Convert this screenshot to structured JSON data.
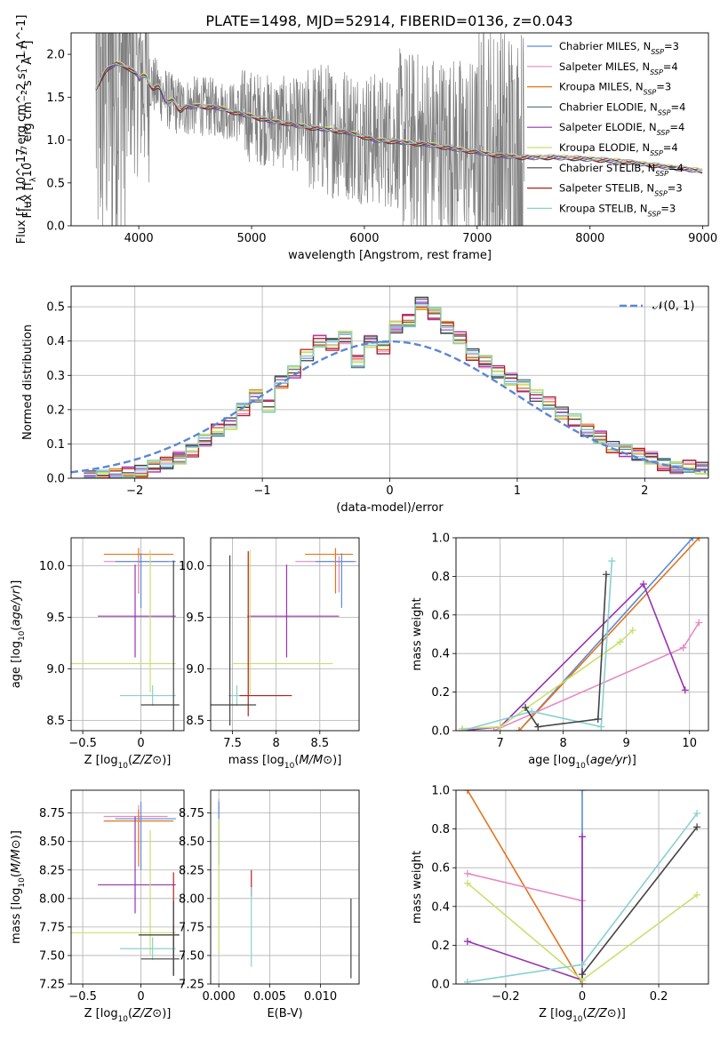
{
  "figure_title": "PLATE=1498, MJD=52914, FIBERID=0136, z=0.043",
  "colors": {
    "Chabrier MILES": "#5a8cd6",
    "Salpeter MILES": "#e78ac3",
    "Kroupa MILES": "#e6731c",
    "Chabrier ELODIE": "#5c7f7a",
    "Salpeter ELODIE": "#9932b2",
    "Kroupa ELODIE": "#c8e070",
    "Chabrier STELIB": "#444444",
    "Salpeter STELIB": "#b22020",
    "Kroupa STELIB": "#88d0d0",
    "data": "#808080",
    "normal": "#5b86d6"
  },
  "chart_data": [
    {
      "id": "spectrum",
      "type": "line",
      "title": "PLATE=1498, MJD=52914, FIBERID=0136, z=0.043",
      "xlabel": "wavelength [Angstrom, rest frame]",
      "ylabel": "Flux [f_λ 10^-17 erg cm^-2 s^-1 A^-1]",
      "xlim": [
        3400,
        9050
      ],
      "ylim": [
        0,
        2.25
      ],
      "xticks": [
        4000,
        5000,
        6000,
        7000,
        8000,
        9000
      ],
      "yticks": [
        0.0,
        0.5,
        1.0,
        1.5,
        2.0
      ],
      "grid": false,
      "legend_position": "top-right",
      "legend": [
        {
          "name": "Chabrier MILES",
          "sub": "3"
        },
        {
          "name": "Salpeter MILES",
          "sub": "4"
        },
        {
          "name": "Kroupa MILES",
          "sub": "3"
        },
        {
          "name": "Chabrier ELODIE",
          "sub": "4"
        },
        {
          "name": "Salpeter ELODIE",
          "sub": "4"
        },
        {
          "name": "Kroupa ELODIE",
          "sub": "4"
        },
        {
          "name": "Chabrier STELIB",
          "sub": "4"
        },
        {
          "name": "Salpeter STELIB",
          "sub": "3"
        },
        {
          "name": "Kroupa STELIB",
          "sub": "3"
        }
      ],
      "model_continuum": [
        [
          3620,
          1.6
        ],
        [
          3700,
          1.8
        ],
        [
          3800,
          1.9
        ],
        [
          3900,
          1.85
        ],
        [
          4000,
          1.75
        ],
        [
          4100,
          1.68
        ],
        [
          4200,
          1.55
        ],
        [
          4300,
          1.42
        ],
        [
          4400,
          1.38
        ],
        [
          4500,
          1.4
        ],
        [
          4700,
          1.38
        ],
        [
          4861,
          1.32
        ],
        [
          5000,
          1.28
        ],
        [
          5175,
          1.22
        ],
        [
          5300,
          1.2
        ],
        [
          5500,
          1.15
        ],
        [
          5700,
          1.12
        ],
        [
          5890,
          1.08
        ],
        [
          6100,
          1.0
        ],
        [
          6300,
          0.98
        ],
        [
          6563,
          0.95
        ],
        [
          6800,
          0.9
        ],
        [
          7000,
          0.86
        ],
        [
          7200,
          0.82
        ],
        [
          7400,
          0.8
        ],
        [
          7700,
          0.8
        ],
        [
          8000,
          0.78
        ],
        [
          8300,
          0.75
        ],
        [
          8600,
          0.7
        ],
        [
          8800,
          0.67
        ],
        [
          9000,
          0.64
        ]
      ]
    },
    {
      "id": "residuals",
      "type": "step",
      "xlabel": "(data-model)/error",
      "ylabel": "Normed distribution",
      "xlim": [
        -2.5,
        2.5
      ],
      "ylim": [
        0,
        0.56
      ],
      "xticks": [
        -2,
        -1,
        0,
        1,
        2
      ],
      "yticks": [
        0.0,
        0.1,
        0.2,
        0.3,
        0.4,
        0.5
      ],
      "grid": true,
      "legend_position": "top-right",
      "normal_label": "𝒩(0, 1)",
      "bin_edges_start": -2.4,
      "bin_width": 0.1,
      "hist_heights": [
        0.004,
        0.005,
        0.01,
        0.015,
        0.02,
        0.035,
        0.045,
        0.06,
        0.08,
        0.11,
        0.14,
        0.16,
        0.2,
        0.24,
        0.21,
        0.28,
        0.31,
        0.36,
        0.4,
        0.39,
        0.41,
        0.34,
        0.4,
        0.38,
        0.44,
        0.46,
        0.51,
        0.48,
        0.44,
        0.41,
        0.36,
        0.34,
        0.31,
        0.29,
        0.27,
        0.24,
        0.22,
        0.19,
        0.17,
        0.14,
        0.12,
        0.09,
        0.08,
        0.07,
        0.06,
        0.04,
        0.03,
        0.035,
        0.03,
        0.025
      ]
    },
    {
      "id": "age-vs-Z",
      "type": "errorbar",
      "xlabel": "Z [log10(Z/Z⊙)]",
      "ylabel": "age  [log10(age/yr)]",
      "xlim": [
        -0.6,
        0.37
      ],
      "ylim": [
        8.4,
        10.27
      ],
      "xticks": [
        -0.5,
        0.0
      ],
      "yticks": [
        8.5,
        9.0,
        9.5,
        10.0
      ],
      "grid": true,
      "points": [
        {
          "model": "Kroupa MILES",
          "x": -0.02,
          "xerr": [
            0.3,
            0.3
          ],
          "y": 10.11,
          "yerr": [
            0.38,
            0.06
          ]
        },
        {
          "model": "Salpeter MILES",
          "x": -0.02,
          "xerr": [
            0.3,
            0.25
          ],
          "y": 10.04,
          "yerr": [
            0.3,
            0.05
          ]
        },
        {
          "model": "Chabrier MILES",
          "x": 0.0,
          "xerr": [
            0.22,
            0.3
          ],
          "y": 10.04,
          "yerr": [
            0.45,
            0.08
          ]
        },
        {
          "model": "Salpeter ELODIE",
          "x": -0.05,
          "xerr": [
            0.32,
            0.35
          ],
          "y": 9.51,
          "yerr": [
            0.4,
            0.5
          ]
        },
        {
          "model": "Kroupa ELODIE",
          "x": 0.08,
          "xerr": [
            0.68,
            0.22
          ],
          "y": 9.05,
          "yerr": [
            0.28,
            1.1
          ]
        },
        {
          "model": "Kroupa STELIB",
          "x": 0.1,
          "xerr": [
            0.28,
            0.2
          ],
          "y": 8.74,
          "yerr": [
            0.1,
            0.1
          ]
        },
        {
          "model": "Chabrier STELIB",
          "x": 0.28,
          "xerr": [
            0.28,
            0.05
          ],
          "y": 8.65,
          "yerr": [
            0.3,
            1.4
          ]
        }
      ]
    },
    {
      "id": "age-vs-mass",
      "type": "errorbar",
      "xlabel": "mass [log10(M/M⊙)]",
      "ylabel": "",
      "xlim": [
        7.25,
        8.95
      ],
      "ylim": [
        8.4,
        10.27
      ],
      "xticks": [
        7.5,
        8.0,
        8.5
      ],
      "yticks": [
        8.5,
        9.0,
        9.5,
        10.0
      ],
      "grid": true,
      "points": [
        {
          "model": "Kroupa MILES",
          "x": 8.68,
          "xerr": [
            0.35,
            0.2
          ],
          "y": 10.11,
          "yerr": [
            0.38,
            0.06
          ]
        },
        {
          "model": "Salpeter MILES",
          "x": 8.72,
          "xerr": [
            0.5,
            0.2
          ],
          "y": 10.04,
          "yerr": [
            0.3,
            0.05
          ]
        },
        {
          "model": "Chabrier MILES",
          "x": 8.75,
          "xerr": [
            0.3,
            0.15
          ],
          "y": 10.04,
          "yerr": [
            0.45,
            0.08
          ]
        },
        {
          "model": "Salpeter ELODIE",
          "x": 8.12,
          "xerr": [
            0.45,
            0.6
          ],
          "y": 9.51,
          "yerr": [
            0.4,
            0.5
          ]
        },
        {
          "model": "Kroupa ELODIE",
          "x": 7.7,
          "xerr": [
            0.2,
            0.95
          ],
          "y": 9.05,
          "yerr": [
            0.3,
            1.1
          ]
        },
        {
          "model": "Kroupa STELIB",
          "x": 7.55,
          "xerr": [
            0.1,
            0.55
          ],
          "y": 8.74,
          "yerr": [
            0.1,
            0.1
          ]
        },
        {
          "model": "Salpeter STELIB",
          "x": 7.68,
          "xerr": [
            0.1,
            0.5
          ],
          "y": 8.74,
          "yerr": [
            0.2,
            1.4
          ]
        },
        {
          "model": "Chabrier STELIB",
          "x": 7.47,
          "xerr": [
            0.25,
            0.3
          ],
          "y": 8.65,
          "yerr": [
            0.2,
            1.45
          ]
        }
      ]
    },
    {
      "id": "weight-vs-age",
      "type": "line",
      "xlabel": "age  [log10(age/yr)]",
      "ylabel": "mass weight",
      "xlim": [
        6.3,
        10.3
      ],
      "ylim": [
        0,
        1.0
      ],
      "xticks": [
        7,
        8,
        9,
        10
      ],
      "yticks": [
        0.0,
        0.2,
        0.4,
        0.6,
        0.8,
        1.0
      ],
      "grid": true,
      "series": [
        {
          "model": "Chabrier MILES",
          "points": [
            [
              7.3,
              0.0
            ],
            [
              10.05,
              1.0
            ]
          ]
        },
        {
          "model": "Kroupa MILES",
          "points": [
            [
              7.3,
              0.0
            ],
            [
              10.15,
              1.0
            ]
          ]
        },
        {
          "model": "Salpeter MILES",
          "points": [
            [
              6.9,
              0.0
            ],
            [
              9.9,
              0.43
            ],
            [
              10.15,
              0.56
            ]
          ]
        },
        {
          "model": "Salpeter ELODIE",
          "points": [
            [
              6.4,
              0.0
            ],
            [
              7.0,
              0.02
            ],
            [
              9.27,
              0.76
            ],
            [
              9.93,
              0.21
            ]
          ]
        },
        {
          "model": "Kroupa ELODIE",
          "points": [
            [
              6.4,
              0.01
            ],
            [
              7.0,
              0.02
            ],
            [
              8.9,
              0.46
            ],
            [
              9.1,
              0.52
            ]
          ]
        },
        {
          "model": "Kroupa STELIB",
          "points": [
            [
              6.4,
              0.0
            ],
            [
              7.5,
              0.1
            ],
            [
              8.6,
              0.02
            ],
            [
              8.77,
              0.88
            ]
          ]
        },
        {
          "model": "Chabrier STELIB",
          "points": [
            [
              7.4,
              0.12
            ],
            [
              7.6,
              0.02
            ],
            [
              8.55,
              0.06
            ],
            [
              8.68,
              0.81
            ]
          ]
        }
      ]
    },
    {
      "id": "mass-vs-Z",
      "type": "errorbar",
      "xlabel": "Z [log10(Z/Z⊙)]",
      "ylabel": "mass [log10(M/M⊙)]",
      "xlim": [
        -0.6,
        0.37
      ],
      "ylim": [
        7.25,
        8.95
      ],
      "xticks": [
        -0.5,
        0.0
      ],
      "yticks": [
        7.25,
        7.5,
        7.75,
        8.0,
        8.25,
        8.5,
        8.75
      ],
      "grid": true,
      "points": [
        {
          "model": "Salpeter MILES",
          "x": -0.02,
          "xerr": [
            0.3,
            0.25
          ],
          "y": 8.72,
          "yerr": [
            0.3,
            0.1
          ]
        },
        {
          "model": "Kroupa MILES",
          "x": -0.02,
          "xerr": [
            0.3,
            0.3
          ],
          "y": 8.68,
          "yerr": [
            0.4,
            0.1
          ]
        },
        {
          "model": "Chabrier MILES",
          "x": 0.0,
          "xerr": [
            0.22,
            0.3
          ],
          "y": 8.7,
          "yerr": [
            0.45,
            0.15
          ]
        },
        {
          "model": "Salpeter ELODIE",
          "x": -0.05,
          "xerr": [
            0.32,
            0.35
          ],
          "y": 8.12,
          "yerr": [
            0.25,
            0.6
          ]
        },
        {
          "model": "Kroupa ELODIE",
          "x": 0.08,
          "xerr": [
            0.68,
            0.22
          ],
          "y": 7.7,
          "yerr": [
            0.2,
            0.9
          ]
        },
        {
          "model": "Salpeter STELIB",
          "x": 0.28,
          "xerr": [
            0.3,
            0.05
          ],
          "y": 7.68,
          "yerr": [
            0.2,
            0.55
          ]
        },
        {
          "model": "Chabrier STELIB",
          "x": 0.28,
          "xerr": [
            0.3,
            0.05
          ],
          "y": 7.68,
          "yerr": [
            0.35,
            0.3
          ]
        },
        {
          "model": "Kroupa STELIB",
          "x": 0.1,
          "xerr": [
            0.28,
            0.2
          ],
          "y": 7.56,
          "yerr": [
            0.1,
            0.1
          ]
        },
        {
          "model": "Chabrier STELIB",
          "x": 0.28,
          "xerr": [
            0.28,
            0.05
          ],
          "y": 7.47,
          "yerr": [
            0.15,
            0.3
          ]
        }
      ]
    },
    {
      "id": "mass-vs-ebv",
      "type": "errorbar",
      "xlabel": "E(B-V)",
      "ylabel": "",
      "xlim": [
        -0.0008,
        0.0138
      ],
      "ylim": [
        7.25,
        8.95
      ],
      "xticks": [
        0.0,
        0.005,
        0.01
      ],
      "xtick_labels": [
        "0.000",
        "0.005",
        "0.010"
      ],
      "yticks": [
        7.25,
        7.5,
        7.75,
        8.0,
        8.25,
        8.5,
        8.75
      ],
      "grid": true,
      "points": [
        {
          "model": "Salpeter MILES",
          "x": 0.0,
          "xerr": [
            0,
            0
          ],
          "y": 8.72,
          "yerr": [
            0.3,
            0.15
          ]
        },
        {
          "model": "Chabrier MILES",
          "x": 0.0,
          "xerr": [
            0,
            0
          ],
          "y": 8.7,
          "yerr": [
            0.4,
            0.15
          ]
        },
        {
          "model": "Kroupa ELODIE",
          "x": 0.0,
          "xerr": [
            0,
            0
          ],
          "y": 7.9,
          "yerr": [
            0.4,
            0.8
          ]
        },
        {
          "model": "Salpeter STELIB",
          "x": 0.0032,
          "xerr": [
            0,
            0
          ],
          "y": 8.12,
          "yerr": [
            0.1,
            0.13
          ]
        },
        {
          "model": "Kroupa STELIB",
          "x": 0.0032,
          "xerr": [
            0,
            0
          ],
          "y": 7.75,
          "yerr": [
            0.35,
            0.35
          ]
        },
        {
          "model": "Chabrier STELIB",
          "x": 0.013,
          "xerr": [
            0,
            0
          ],
          "y": 7.65,
          "yerr": [
            0.35,
            0.35
          ]
        }
      ]
    },
    {
      "id": "weight-vs-Z",
      "type": "line",
      "xlabel": "Z [log10(Z/Z⊙)]",
      "ylabel": "mass weight",
      "xlim": [
        -0.33,
        0.33
      ],
      "ylim": [
        0,
        1.0
      ],
      "xticks": [
        -0.2,
        0.0,
        0.2
      ],
      "yticks": [
        0.0,
        0.2,
        0.4,
        0.6,
        0.8,
        1.0
      ],
      "grid": true,
      "series": [
        {
          "model": "Kroupa MILES",
          "points": [
            [
              -0.3,
              1.0
            ],
            [
              0.0,
              0.0
            ]
          ]
        },
        {
          "model": "Chabrier MILES",
          "points": [
            [
              0.0,
              0.0
            ],
            [
              0.0,
              1.0
            ]
          ]
        },
        {
          "model": "Salpeter MILES",
          "points": [
            [
              -0.3,
              0.57
            ],
            [
              0.0,
              0.43
            ]
          ]
        },
        {
          "model": "Salpeter ELODIE",
          "points": [
            [
              -0.3,
              0.22
            ],
            [
              0.0,
              0.02
            ],
            [
              0.0,
              0.76
            ]
          ]
        },
        {
          "model": "Kroupa ELODIE",
          "points": [
            [
              -0.3,
              0.52
            ],
            [
              0.0,
              0.02
            ],
            [
              0.3,
              0.46
            ]
          ]
        },
        {
          "model": "Kroupa STELIB",
          "points": [
            [
              -0.3,
              0.01
            ],
            [
              0.0,
              0.1
            ],
            [
              0.3,
              0.88
            ]
          ]
        },
        {
          "model": "Chabrier STELIB",
          "points": [
            [
              0.0,
              0.05
            ],
            [
              0.3,
              0.81
            ]
          ]
        }
      ]
    }
  ]
}
